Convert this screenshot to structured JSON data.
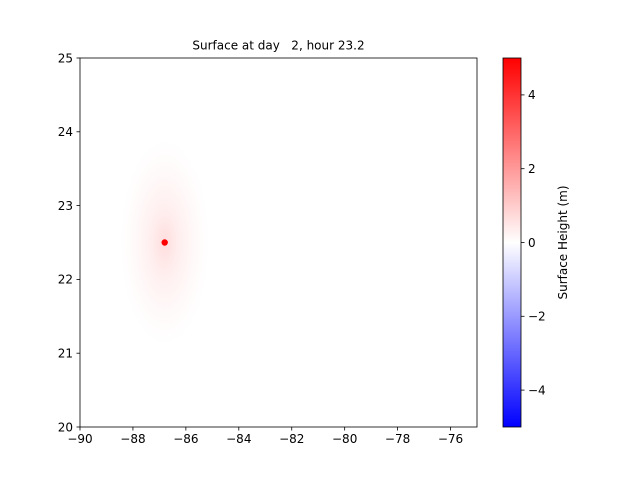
{
  "chart_data": {
    "type": "heatmap",
    "title": "Surface at day   2, hour 23.2",
    "xlim": [
      -90,
      -75
    ],
    "ylim": [
      20,
      25
    ],
    "xticks": [
      -90,
      -88,
      -86,
      -84,
      -82,
      -80,
      -78,
      -76
    ],
    "yticks": [
      20,
      21,
      22,
      23,
      24,
      25
    ],
    "xtick_labels": [
      "−90",
      "−88",
      "−86",
      "−84",
      "−82",
      "−80",
      "−78",
      "−76"
    ],
    "ytick_labels": [
      "20",
      "21",
      "22",
      "23",
      "24",
      "25"
    ],
    "field": {
      "description": "surface height anomaly",
      "center": [
        -86.8,
        22.5
      ],
      "peak_value": 0.35,
      "sigma_x": 1.0,
      "sigma_y": 1.0
    },
    "marker": {
      "x": -86.8,
      "y": 22.5,
      "color": "#ff0000"
    },
    "colorbar": {
      "label": "Surface Height (m)",
      "vmin": -5,
      "vmax": 5,
      "ticks": [
        -4,
        -2,
        0,
        2,
        4
      ],
      "tick_labels": [
        "−4",
        "−2",
        "0",
        "2",
        "4"
      ],
      "colormap": "bwr",
      "colors": [
        "#0000ff",
        "#ffffff",
        "#ff0000"
      ]
    },
    "grid": false
  }
}
